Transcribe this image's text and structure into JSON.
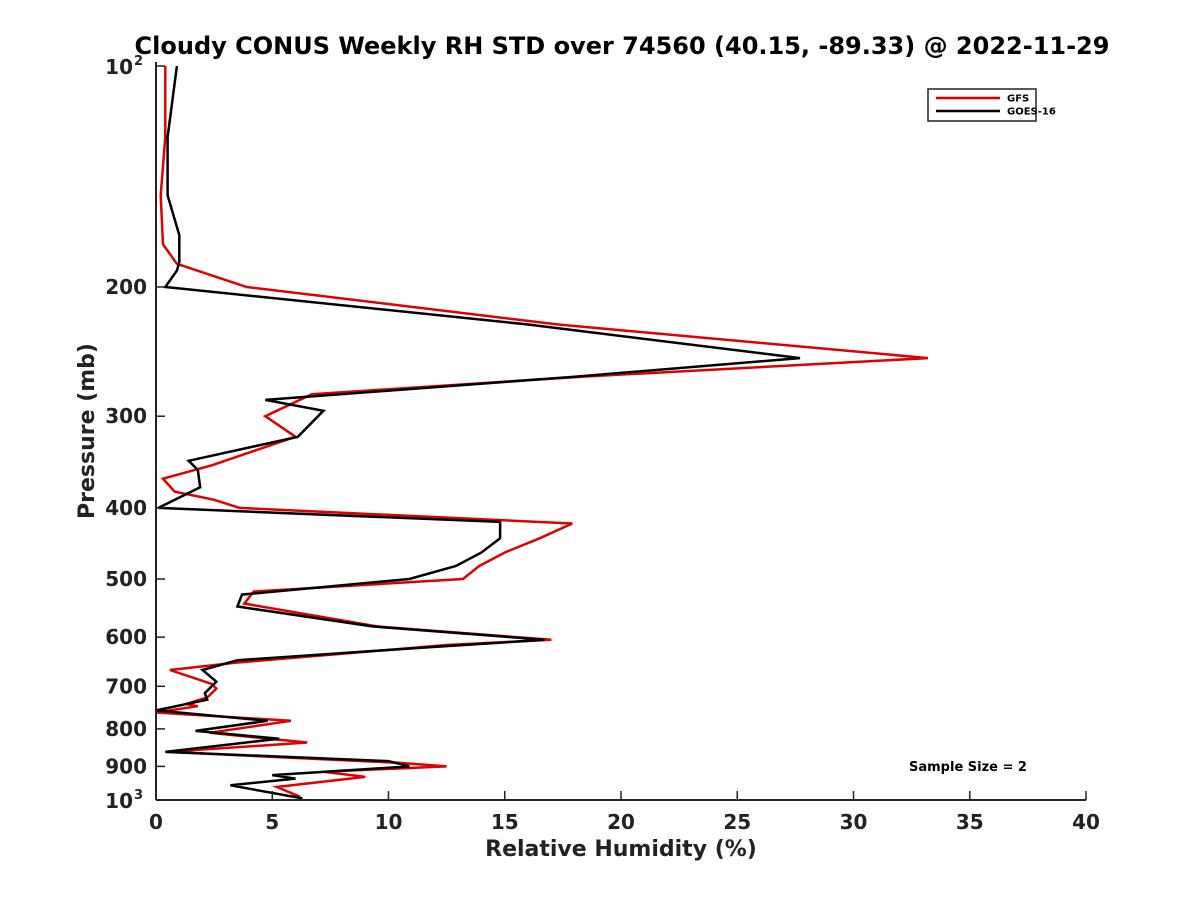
{
  "chart_data": {
    "type": "line",
    "title": "Cloudy CONUS Weekly RH STD over 74560 (40.15, -89.33) @ 2022-11-29",
    "xlabel": "Relative Humidity (%)",
    "ylabel": "Pressure (mb)",
    "xlim": [
      0,
      40
    ],
    "ylim": [
      100,
      1000
    ],
    "yscale": "log",
    "y_reversed": true,
    "grid": false,
    "legend_position": "top-right",
    "xticks": [
      "0",
      "5",
      "10",
      "15",
      "20",
      "25",
      "30",
      "35",
      "40"
    ],
    "yticks": [
      {
        "value": 100,
        "base": "10",
        "exp": "2"
      },
      {
        "value": 200,
        "label": "200"
      },
      {
        "value": 300,
        "label": "300"
      },
      {
        "value": 400,
        "label": "400"
      },
      {
        "value": 500,
        "label": "500"
      },
      {
        "value": 600,
        "label": "600"
      },
      {
        "value": 700,
        "label": "700"
      },
      {
        "value": 800,
        "label": "800"
      },
      {
        "value": 900,
        "label": "900"
      },
      {
        "value": 1000,
        "base": "10",
        "exp": "3"
      }
    ],
    "annotation": "Sample Size = 2",
    "series": [
      {
        "name": "GFS",
        "color": "#e00000",
        "points": [
          [
            0.4,
            100
          ],
          [
            0.4,
            125
          ],
          [
            0.2,
            150
          ],
          [
            0.3,
            175
          ],
          [
            0.9,
            186
          ],
          [
            3.9,
            200
          ],
          [
            17.3,
            225
          ],
          [
            33.2,
            250
          ],
          [
            18.3,
            265
          ],
          [
            6.7,
            280
          ],
          [
            4.7,
            300
          ],
          [
            6.0,
            320
          ],
          [
            2.4,
            350
          ],
          [
            0.3,
            365
          ],
          [
            0.8,
            380
          ],
          [
            2.5,
            390
          ],
          [
            3.6,
            400
          ],
          [
            17.9,
            420
          ],
          [
            16.5,
            440
          ],
          [
            15.0,
            460
          ],
          [
            13.9,
            480
          ],
          [
            13.2,
            500
          ],
          [
            4.2,
            520
          ],
          [
            3.8,
            540
          ],
          [
            9.5,
            580
          ],
          [
            17.0,
            605
          ],
          [
            12.5,
            615
          ],
          [
            3.4,
            650
          ],
          [
            0.6,
            665
          ],
          [
            2.4,
            695
          ],
          [
            2.6,
            705
          ],
          [
            2.2,
            725
          ],
          [
            1.3,
            740
          ],
          [
            1.8,
            745
          ],
          [
            0.0,
            760
          ],
          [
            5.8,
            780
          ],
          [
            2.3,
            810
          ],
          [
            6.5,
            835
          ],
          [
            0.5,
            860
          ],
          [
            10.5,
            890
          ],
          [
            12.5,
            900
          ],
          [
            7.2,
            915
          ],
          [
            9.0,
            930
          ],
          [
            5.2,
            960
          ],
          [
            6.2,
            990
          ]
        ]
      },
      {
        "name": "GOES-16",
        "color": "#000000",
        "points": [
          [
            0.9,
            100
          ],
          [
            0.5,
            125
          ],
          [
            0.5,
            150
          ],
          [
            1.0,
            170
          ],
          [
            1.0,
            185
          ],
          [
            0.9,
            190
          ],
          [
            0.4,
            200
          ],
          [
            16.0,
            225
          ],
          [
            27.7,
            250
          ],
          [
            18.0,
            265
          ],
          [
            4.7,
            285
          ],
          [
            7.2,
            295
          ],
          [
            6.1,
            320
          ],
          [
            1.4,
            345
          ],
          [
            1.8,
            355
          ],
          [
            1.9,
            375
          ],
          [
            0.1,
            400
          ],
          [
            14.8,
            418
          ],
          [
            14.8,
            440
          ],
          [
            14.0,
            460
          ],
          [
            12.9,
            480
          ],
          [
            10.9,
            500
          ],
          [
            3.7,
            525
          ],
          [
            3.5,
            545
          ],
          [
            9.3,
            580
          ],
          [
            16.7,
            605
          ],
          [
            11.5,
            620
          ],
          [
            3.5,
            645
          ],
          [
            2.0,
            665
          ],
          [
            2.6,
            690
          ],
          [
            2.1,
            715
          ],
          [
            2.2,
            730
          ],
          [
            0.0,
            755
          ],
          [
            4.8,
            780
          ],
          [
            1.7,
            805
          ],
          [
            5.3,
            825
          ],
          [
            0.4,
            860
          ],
          [
            10.0,
            885
          ],
          [
            10.9,
            900
          ],
          [
            5.0,
            925
          ],
          [
            6.0,
            935
          ],
          [
            3.2,
            955
          ],
          [
            6.3,
            995
          ]
        ]
      }
    ]
  }
}
